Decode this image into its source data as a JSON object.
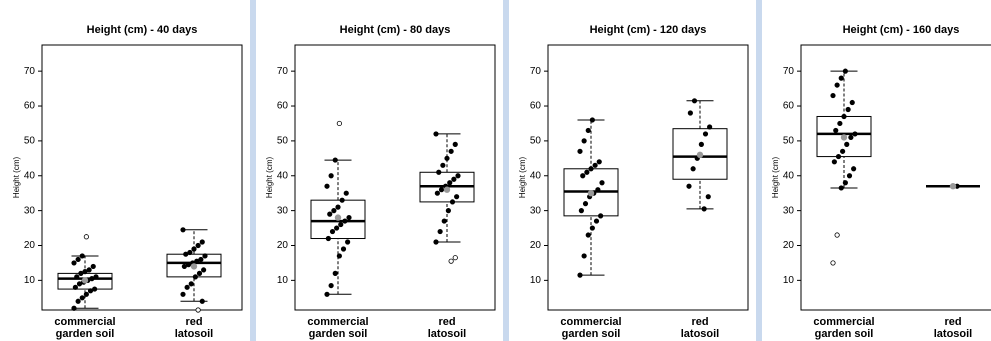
{
  "chart_data": [
    {
      "type": "box",
      "title": "Height (cm) - 40 days",
      "ylabel": "Height (cm)",
      "categories": [
        [
          "commercial",
          "garden soil"
        ],
        [
          "red",
          "latosoil"
        ]
      ],
      "ylim": [
        1.5,
        77.5
      ],
      "yticks": [
        10,
        20,
        30,
        40,
        50,
        60,
        70
      ],
      "boxes": [
        {
          "min": 2,
          "q1": 7.5,
          "median": 10.5,
          "q3": 12,
          "max": 17,
          "mean": 10,
          "outliers": [
            22.5
          ],
          "points": [
            2,
            4,
            5,
            6,
            7,
            7.5,
            8,
            9,
            9.5,
            10,
            10.5,
            11,
            11,
            12,
            12.5,
            13,
            14,
            15,
            16,
            17,
            22.5
          ]
        },
        {
          "min": 4,
          "q1": 11,
          "median": 15,
          "q3": 17.5,
          "max": 24.5,
          "mean": 14,
          "outliers": [
            1.5
          ],
          "points": [
            1.5,
            4,
            6,
            8,
            9,
            11,
            12,
            13,
            14,
            14.5,
            15,
            15.5,
            16,
            17,
            17.5,
            18,
            19,
            20,
            21,
            24.5
          ]
        }
      ]
    },
    {
      "type": "box",
      "title": "Height (cm) - 80 days",
      "ylabel": "Height (cm)",
      "categories": [
        [
          "commercial",
          "garden soil"
        ],
        [
          "red",
          "latosoil"
        ]
      ],
      "ylim": [
        1.5,
        77.5
      ],
      "yticks": [
        10,
        20,
        30,
        40,
        50,
        60,
        70
      ],
      "boxes": [
        {
          "min": 6,
          "q1": 22,
          "median": 27,
          "q3": 33,
          "max": 44.5,
          "mean": 28,
          "outliers": [
            55
          ],
          "points": [
            6,
            8.5,
            12,
            17,
            19,
            21,
            22,
            24,
            25,
            26,
            27,
            28,
            29,
            30,
            31,
            33,
            35,
            37,
            40,
            44.5,
            55
          ]
        },
        {
          "min": 21,
          "q1": 32.5,
          "median": 37,
          "q3": 41,
          "max": 52,
          "mean": 36,
          "outliers": [
            15.5,
            16.5
          ],
          "points": [
            15.5,
            16.5,
            21,
            24,
            27,
            30,
            32.5,
            34,
            35,
            36,
            37,
            38,
            39,
            40,
            41,
            43,
            45,
            47,
            49,
            52
          ]
        }
      ]
    },
    {
      "type": "box",
      "title": "Height (cm) - 120 days",
      "ylabel": "Height (cm)",
      "categories": [
        [
          "commercial",
          "garden soil"
        ],
        [
          "red",
          "latosoil"
        ]
      ],
      "ylim": [
        1.5,
        77.5
      ],
      "yticks": [
        10,
        20,
        30,
        40,
        50,
        60,
        70
      ],
      "boxes": [
        {
          "min": 11.5,
          "q1": 28.5,
          "median": 35.5,
          "q3": 42,
          "max": 56,
          "mean": 35,
          "outliers": [],
          "points": [
            11.5,
            17,
            23,
            25,
            27,
            28.5,
            30,
            32,
            34,
            35,
            36,
            38,
            40,
            41,
            42,
            43,
            44,
            47,
            50,
            53,
            56
          ]
        },
        {
          "min": 30.5,
          "q1": 39,
          "median": 45.5,
          "q3": 53.5,
          "max": 61.5,
          "mean": 46,
          "outliers": [],
          "points": [
            30.5,
            34,
            37,
            42,
            45,
            49,
            52,
            54,
            58,
            61.5
          ]
        }
      ]
    },
    {
      "type": "box",
      "title": "Height (cm) - 160 days",
      "ylabel": "Height (cm)",
      "categories": [
        [
          "commercial",
          "garden soil"
        ],
        [
          "red",
          "latosoil"
        ]
      ],
      "ylim": [
        1.5,
        77.5
      ],
      "yticks": [
        10,
        20,
        30,
        40,
        50,
        60,
        70
      ],
      "boxes": [
        {
          "min": 36.5,
          "q1": 45.5,
          "median": 52,
          "q3": 57,
          "max": 70,
          "mean": 51,
          "outliers": [
            23,
            15
          ],
          "points": [
            15,
            23,
            36.5,
            38,
            40,
            42,
            44,
            45.5,
            47,
            49,
            51,
            52,
            53,
            55,
            57,
            59,
            61,
            63,
            66,
            68,
            70
          ]
        },
        {
          "min": 37,
          "q1": 37,
          "median": 37,
          "q3": 37,
          "max": 37,
          "mean": 37,
          "outliers": [],
          "points": [
            37
          ]
        }
      ]
    }
  ]
}
